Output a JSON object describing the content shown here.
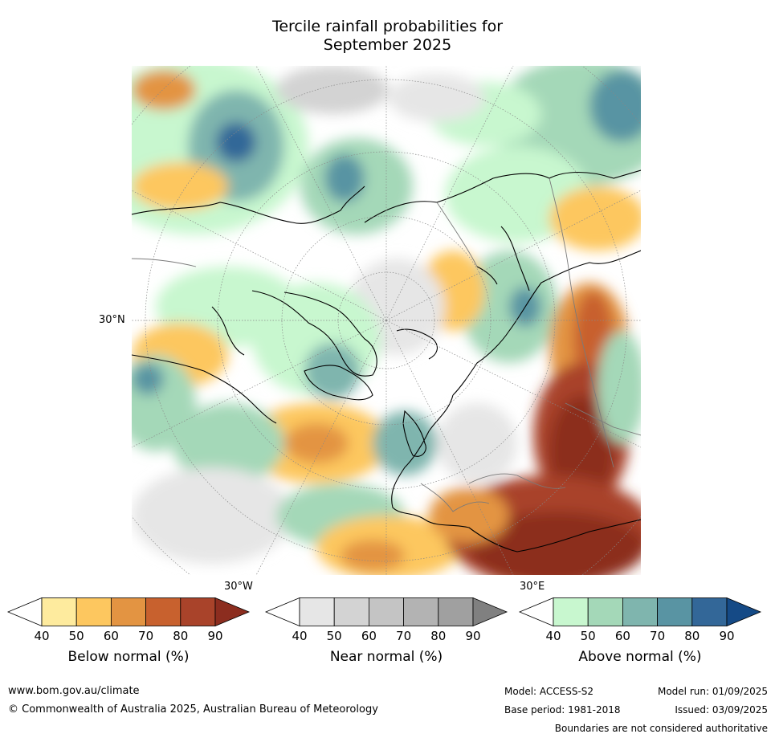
{
  "title_line1": "Tercile rainfall probabilities for",
  "title_line2": "September 2025",
  "map": {
    "lat_label": "30°N",
    "lon_label_west": "30°W",
    "lon_label_east": "30°E"
  },
  "colorbars": [
    {
      "label": "Below normal (%)",
      "ticks": [
        "40",
        "50",
        "60",
        "70",
        "80",
        "90"
      ],
      "colors": [
        "#ffffff",
        "#feeb9e",
        "#fdc75f",
        "#e39442",
        "#c8612e",
        "#a9432a",
        "#8c2d1f"
      ]
    },
    {
      "label": "Near normal (%)",
      "ticks": [
        "40",
        "50",
        "60",
        "70",
        "80",
        "90"
      ],
      "colors": [
        "#ffffff",
        "#e6e6e6",
        "#d3d3d3",
        "#c4c4c4",
        "#b3b3b3",
        "#a0a0a0",
        "#808080"
      ]
    },
    {
      "label": "Above normal (%)",
      "ticks": [
        "40",
        "50",
        "60",
        "70",
        "80",
        "90"
      ],
      "colors": [
        "#ffffff",
        "#c8f7cf",
        "#a4d8b8",
        "#7fb5ae",
        "#5994a3",
        "#336798",
        "#154a86"
      ]
    }
  ],
  "footer": {
    "url": "www.bom.gov.au/climate",
    "copyright": "© Commonwealth of Australia 2025, Australian Bureau of Meteorology",
    "model": "Model: ACCESS-S2",
    "model_run": "Model run: 01/09/2025",
    "base_period": "Base period: 1981-2018",
    "issued": "Issued: 03/09/2025",
    "disclaimer": "Boundaries are not considered authoritative"
  }
}
